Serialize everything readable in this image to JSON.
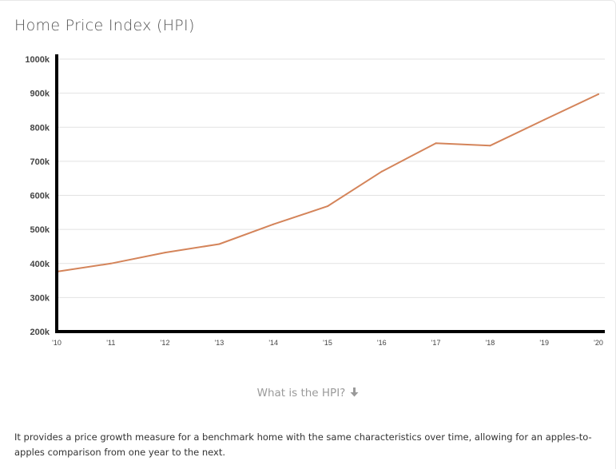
{
  "title": "Home Price Index (HPI)",
  "toggle_label": "What is the HPI?",
  "description": "It provides a price growth measure for a benchmark home with the same characteristics over time, allowing for an apples-to-apples comparison from one year to the next.",
  "colors": {
    "line": "#d4845a",
    "axis": "#000000",
    "grid": "#e2e2e2"
  },
  "chart_data": {
    "type": "line",
    "title": "Home Price Index (HPI)",
    "xlabel": "",
    "ylabel": "",
    "categories": [
      "'10",
      "'11",
      "'12",
      "'13",
      "'14",
      "'15",
      "'16",
      "'17",
      "'18",
      "'19",
      "'20"
    ],
    "y_tick_labels": [
      "200k",
      "300k",
      "400k",
      "500k",
      "600k",
      "700k",
      "800k",
      "900k",
      "1000k"
    ],
    "y_ticks": [
      200000,
      300000,
      400000,
      500000,
      600000,
      700000,
      800000,
      900000,
      1000000
    ],
    "ylim": [
      200000,
      1000000
    ],
    "grid": true,
    "legend": "none",
    "series": [
      {
        "values": [
          376000,
          400000,
          432000,
          457000,
          515000,
          568000,
          670000,
          753000,
          746000,
          822000,
          897000
        ]
      }
    ]
  }
}
